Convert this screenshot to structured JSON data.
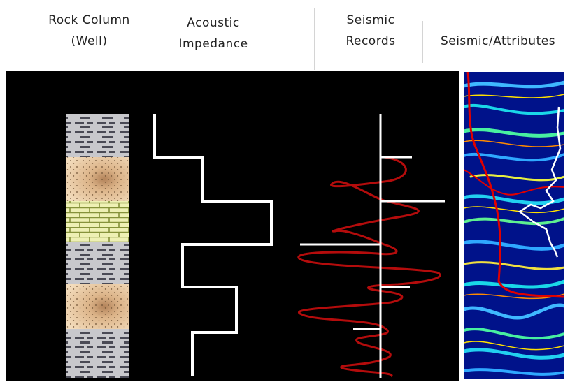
{
  "header": {
    "col1_line1": "Rock Column",
    "col1_line2": "(Well)",
    "col2_line1": "Acoustic",
    "col2_line2": "Impedance",
    "col3_line1": "Seismic",
    "col3_line2": "Records",
    "col4": "Seismic/Attributes"
  },
  "layers": [
    {
      "type": "shale"
    },
    {
      "type": "sandstone"
    },
    {
      "type": "limestone"
    },
    {
      "type": "shale"
    },
    {
      "type": "sandstone"
    },
    {
      "type": "shale"
    }
  ],
  "colors": {
    "panel_bg": "#000000",
    "impedance_line": "#ffffff",
    "wavelet": "#c00000",
    "attr_bg": "#00128a",
    "shale": "#c8c8cc",
    "sandstone": "#f0d2ab",
    "limestone": "#eef0b4"
  }
}
